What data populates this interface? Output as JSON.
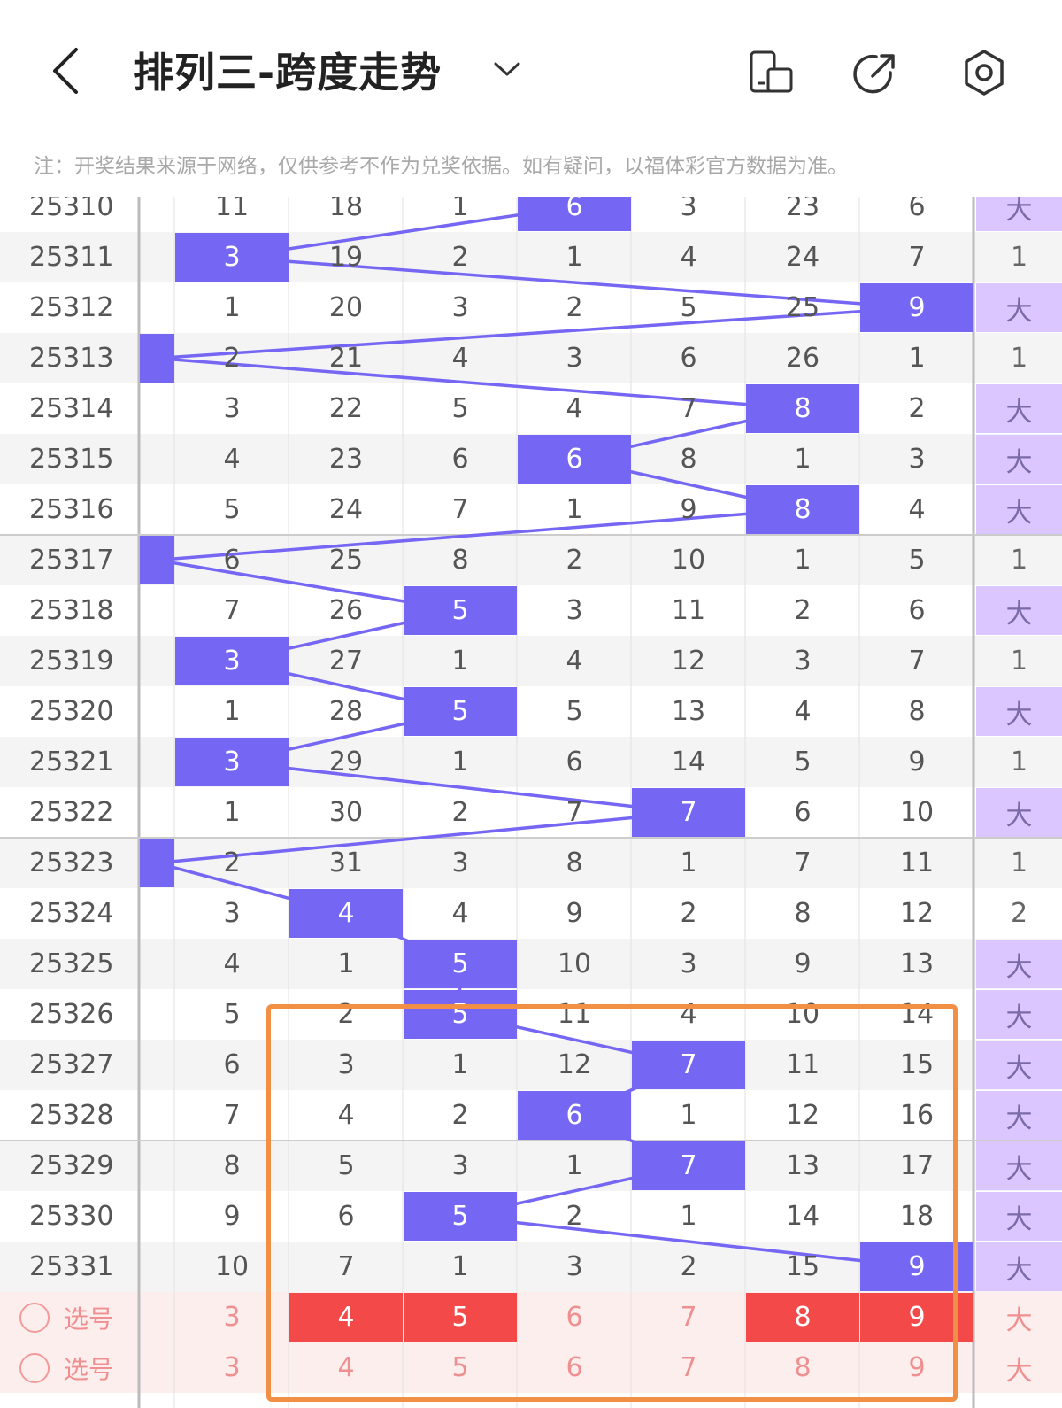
{
  "header": {
    "title": "排列三-跨度走势",
    "icons": [
      "back-icon",
      "chevron-down-icon",
      "layout-icon",
      "share-icon",
      "settings-icon"
    ]
  },
  "notice": "注：开奖结果来源于网络，仅供参考不作为兑奖依据。如有疑问，以福体彩官方数据为准。",
  "rows": [
    {
      "period": "25310",
      "cells": [
        "",
        "11",
        "18",
        "1",
        "6",
        "3",
        "23",
        "6"
      ],
      "hit": 4,
      "size": "大"
    },
    {
      "period": "25311",
      "cells": [
        "",
        "3",
        "19",
        "2",
        "1",
        "4",
        "24",
        "7"
      ],
      "hit": 1,
      "size": "1"
    },
    {
      "period": "25312",
      "cells": [
        "",
        "1",
        "20",
        "3",
        "2",
        "5",
        "25",
        "9"
      ],
      "hit": 7,
      "size": "大"
    },
    {
      "period": "25313",
      "cells": [
        "",
        "2",
        "21",
        "4",
        "3",
        "6",
        "26",
        "1"
      ],
      "hit": 0,
      "size": "1"
    },
    {
      "period": "25314",
      "cells": [
        "",
        "3",
        "22",
        "5",
        "4",
        "7",
        "8",
        "2"
      ],
      "hit": 6,
      "size": "大"
    },
    {
      "period": "25315",
      "cells": [
        "",
        "4",
        "23",
        "6",
        "6",
        "8",
        "1",
        "3"
      ],
      "hit": 4,
      "size": "大"
    },
    {
      "period": "25316",
      "cells": [
        "",
        "5",
        "24",
        "7",
        "1",
        "9",
        "8",
        "4"
      ],
      "hit": 6,
      "size": "大"
    },
    {
      "period": "25317",
      "cells": [
        "",
        "6",
        "25",
        "8",
        "2",
        "10",
        "1",
        "5"
      ],
      "hit": 0,
      "size": "1"
    },
    {
      "period": "25318",
      "cells": [
        "",
        "7",
        "26",
        "5",
        "3",
        "11",
        "2",
        "6"
      ],
      "hit": 3,
      "size": "大"
    },
    {
      "period": "25319",
      "cells": [
        "",
        "3",
        "27",
        "1",
        "4",
        "12",
        "3",
        "7"
      ],
      "hit": 1,
      "size": "1"
    },
    {
      "period": "25320",
      "cells": [
        "",
        "1",
        "28",
        "5",
        "5",
        "13",
        "4",
        "8"
      ],
      "hit": 3,
      "size": "大"
    },
    {
      "period": "25321",
      "cells": [
        "",
        "3",
        "29",
        "1",
        "6",
        "14",
        "5",
        "9"
      ],
      "hit": 1,
      "size": "1"
    },
    {
      "period": "25322",
      "cells": [
        "",
        "1",
        "30",
        "2",
        "7",
        "7",
        "6",
        "10"
      ],
      "hit": 5,
      "size": "大"
    },
    {
      "period": "25323",
      "cells": [
        "",
        "2",
        "31",
        "3",
        "8",
        "1",
        "7",
        "11"
      ],
      "hit": 0,
      "size": "1"
    },
    {
      "period": "25324",
      "cells": [
        "",
        "3",
        "4",
        "4",
        "9",
        "2",
        "8",
        "12"
      ],
      "hit": 2,
      "size": "2"
    },
    {
      "period": "25325",
      "cells": [
        "",
        "4",
        "1",
        "5",
        "10",
        "3",
        "9",
        "13"
      ],
      "hit": 3,
      "size": "大"
    },
    {
      "period": "25326",
      "cells": [
        "",
        "5",
        "2",
        "5",
        "11",
        "4",
        "10",
        "14"
      ],
      "hit": 3,
      "size": "大"
    },
    {
      "period": "25327",
      "cells": [
        "",
        "6",
        "3",
        "1",
        "12",
        "7",
        "11",
        "15"
      ],
      "hit": 5,
      "size": "大"
    },
    {
      "period": "25328",
      "cells": [
        "",
        "7",
        "4",
        "2",
        "6",
        "1",
        "12",
        "16"
      ],
      "hit": 4,
      "size": "大"
    },
    {
      "period": "25329",
      "cells": [
        "",
        "8",
        "5",
        "3",
        "1",
        "7",
        "13",
        "17"
      ],
      "hit": 5,
      "size": "大"
    },
    {
      "period": "25330",
      "cells": [
        "",
        "9",
        "6",
        "5",
        "2",
        "1",
        "14",
        "18"
      ],
      "hit": 3,
      "size": "大"
    },
    {
      "period": "25331",
      "cells": [
        "",
        "10",
        "7",
        "1",
        "3",
        "2",
        "15",
        "9"
      ],
      "hit": 7,
      "size": "大"
    }
  ],
  "select_rows": [
    {
      "label": "选号",
      "cells": [
        "",
        "3",
        "4",
        "5",
        "6",
        "7",
        "8",
        "9"
      ],
      "selected": [
        2,
        3,
        6,
        7
      ],
      "size": "大"
    },
    {
      "label": "选号",
      "cells": [
        "",
        "3",
        "4",
        "5",
        "6",
        "7",
        "8",
        "9"
      ],
      "selected": [],
      "size": "大"
    }
  ],
  "colors": {
    "hit": "#7567f4",
    "selected": "#f34949",
    "size_bg": "#dcc6ff",
    "highlight_box": "#f19045",
    "select_row_bg": "#fdeeee"
  }
}
